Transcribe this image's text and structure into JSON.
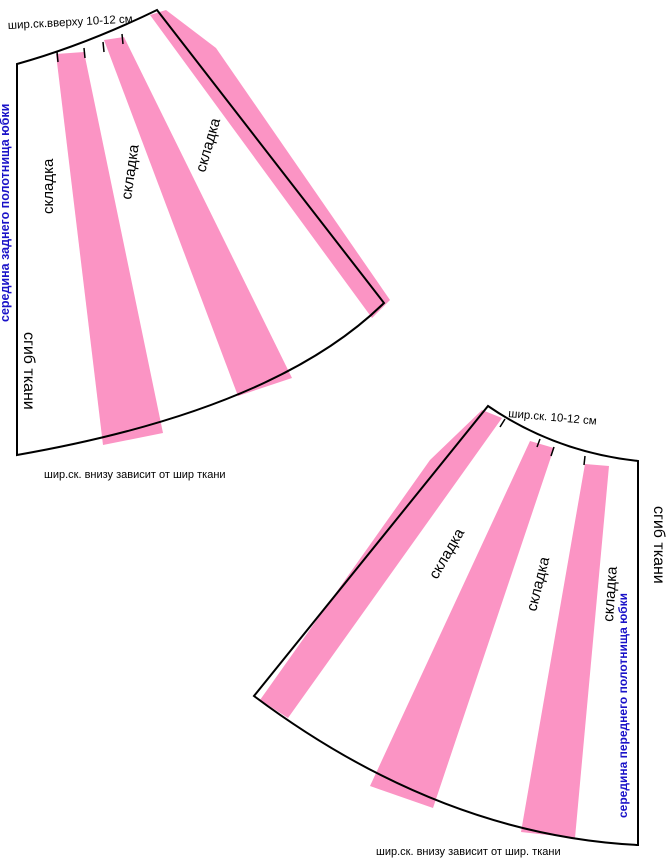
{
  "colors": {
    "pleat": "#fb94c4",
    "outline": "#000000",
    "blue_label": "#1a12c8"
  },
  "back_panel": {
    "top_note": "шир.ск.вверху 10-12 см",
    "pleat_1": "складка",
    "pleat_2": "складка",
    "pleat_3": "складка",
    "fold_label": "сгиб ткани",
    "center_label": "середина заднего полотнища юбки",
    "bottom_note": "шир.ск. внизу зависит от шир ткани"
  },
  "front_panel": {
    "top_note": "шир.ск. 10-12 см",
    "pleat_1": "складка",
    "pleat_2": "складка",
    "pleat_3": "складка",
    "fold_label": "сгиб ткани",
    "center_label": "середина переднего полотнища юбки",
    "bottom_note": "шир.ск. внизу зависит от шир. ткани"
  }
}
